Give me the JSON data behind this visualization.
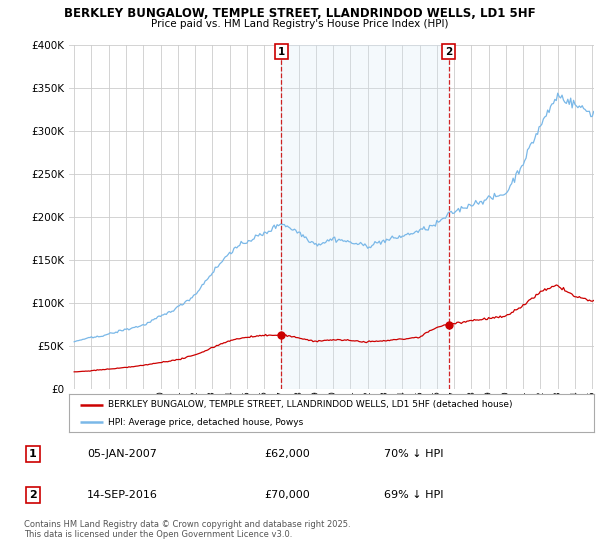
{
  "title_line1": "BERKLEY BUNGALOW, TEMPLE STREET, LLANDRINDOD WELLS, LD1 5HF",
  "title_line2": "Price paid vs. HM Land Registry's House Price Index (HPI)",
  "legend_line1": "BERKLEY BUNGALOW, TEMPLE STREET, LLANDRINDOD WELLS, LD1 5HF (detached house)",
  "legend_line2": "HPI: Average price, detached house, Powys",
  "footer": "Contains HM Land Registry data © Crown copyright and database right 2025.\nThis data is licensed under the Open Government Licence v3.0.",
  "transaction1_date": "05-JAN-2007",
  "transaction1_price": "£62,000",
  "transaction1_hpi": "70% ↓ HPI",
  "transaction2_date": "14-SEP-2016",
  "transaction2_price": "£70,000",
  "transaction2_hpi": "69% ↓ HPI",
  "hpi_color": "#7ab8e8",
  "price_color": "#cc0000",
  "vline_color": "#cc0000",
  "shade_color": "#d6e8f7",
  "background_color": "#ffffff",
  "grid_color": "#cccccc",
  "ylim_min": 0,
  "ylim_max": 400000,
  "yticks": [
    0,
    50000,
    100000,
    150000,
    200000,
    250000,
    300000,
    350000,
    400000
  ],
  "xstart_year": 1995,
  "xend_year": 2025,
  "transaction1_x": 2007.0,
  "transaction2_x": 2016.7
}
